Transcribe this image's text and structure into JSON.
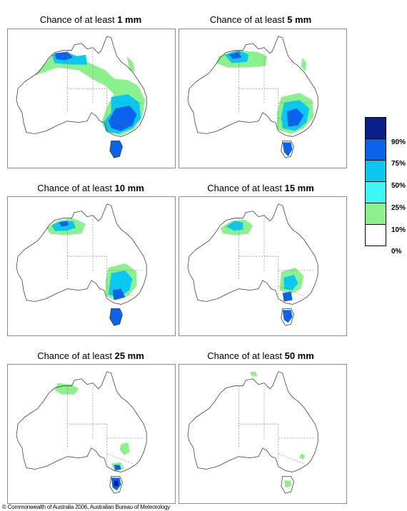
{
  "panels": [
    {
      "title_prefix": "Chance of at least ",
      "threshold": "1 mm"
    },
    {
      "title_prefix": "Chance of at least ",
      "threshold": "5 mm"
    },
    {
      "title_prefix": "Chance of at least ",
      "threshold": "10 mm"
    },
    {
      "title_prefix": "Chance of at least ",
      "threshold": "15 mm"
    },
    {
      "title_prefix": "Chance of at least ",
      "threshold": "25 mm"
    },
    {
      "title_prefix": "Chance of at least ",
      "threshold": "50 mm"
    }
  ],
  "legend": {
    "labels": [
      "90%",
      "75%",
      "50%",
      "25%",
      "10%",
      "0%"
    ],
    "colors": [
      "#0a1f8c",
      "#0a64eb",
      "#0ac8f0",
      "#3cf5f5",
      "#8cf08c",
      "#ffffff"
    ]
  },
  "copyright": "© Commonwealth of Australia 2006, Australian Bureau of Meteorology"
}
